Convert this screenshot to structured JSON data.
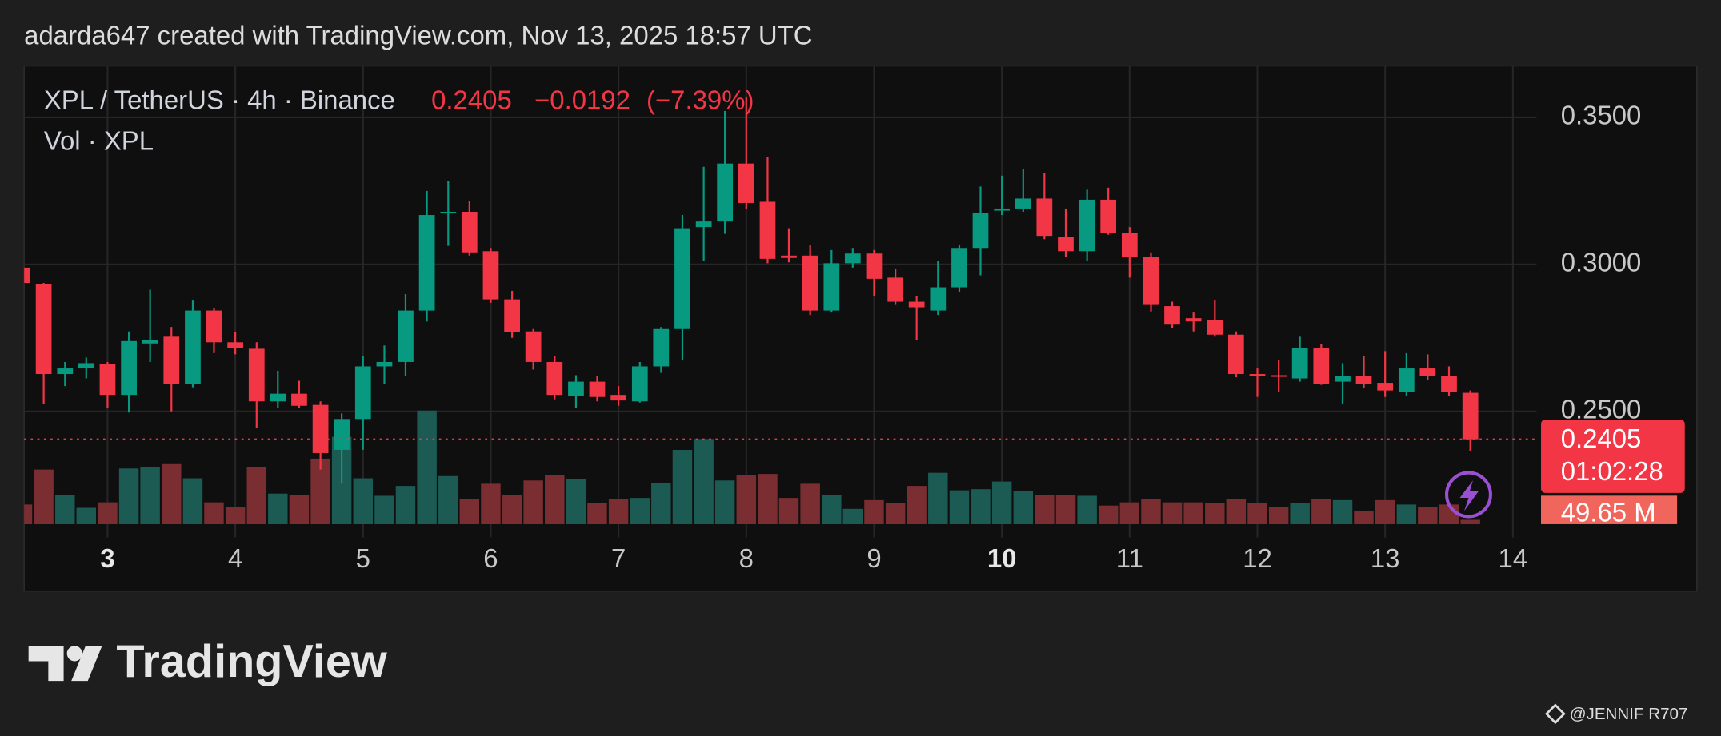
{
  "header": {
    "attribution": "adarda647 created with TradingView.com, Nov 13, 2025 18:57 UTC"
  },
  "chart_data": {
    "type": "candlestick",
    "symbol": "XPL / TetherUS · 4h · Binance",
    "last_price": 0.2405,
    "change": {
      "value": -0.0192,
      "label": "−0.0192"
    },
    "change_pct": {
      "value": -7.39,
      "label": "(−7.39%)"
    },
    "countdown": "01:02:28",
    "up_color": "#089981",
    "down_color": "#f23645",
    "volume_up_color": "#1b5b54",
    "volume_down_color": "#7b2e31",
    "grid": true,
    "xlim": [
      2.347,
      14.186
    ],
    "xticks": [
      3,
      4,
      5,
      6,
      7,
      8,
      9,
      10,
      11,
      12,
      13,
      14
    ],
    "bold_xticks": [
      3,
      10
    ],
    "ylim": [
      0.2116,
      0.3675
    ],
    "yticks": [
      {
        "value": 0.25,
        "label": "0.2500"
      },
      {
        "value": 0.3,
        "label": "0.3000"
      },
      {
        "value": 0.35,
        "label": "0.3500"
      }
    ],
    "x": [
      2.333,
      2.5,
      2.667,
      2.833,
      3.0,
      3.167,
      3.333,
      3.5,
      3.667,
      3.833,
      4.0,
      4.167,
      4.333,
      4.5,
      4.667,
      4.833,
      5.0,
      5.167,
      5.333,
      5.5,
      5.667,
      5.833,
      6.0,
      6.167,
      6.333,
      6.5,
      6.667,
      6.833,
      7.0,
      7.167,
      7.333,
      7.5,
      7.667,
      7.833,
      8.0,
      8.167,
      8.333,
      8.5,
      8.667,
      8.833,
      9.0,
      9.167,
      9.333,
      9.5,
      9.667,
      9.833,
      10.0,
      10.167,
      10.333,
      10.5,
      10.667,
      10.833,
      11.0,
      11.167,
      11.333,
      11.5,
      11.667,
      11.833,
      12.0,
      12.167,
      12.333,
      12.5,
      12.667,
      12.833,
      13.0,
      13.167,
      13.333,
      13.5,
      13.667
    ],
    "open": [
      0.2989,
      0.2933,
      0.2627,
      0.2646,
      0.266,
      0.2556,
      0.2731,
      0.2754,
      0.2593,
      0.2843,
      0.2735,
      0.2713,
      0.2534,
      0.256,
      0.2522,
      0.2369,
      0.2474,
      0.2653,
      0.2668,
      0.2843,
      0.3175,
      0.3179,
      0.3045,
      0.2881,
      0.2772,
      0.2668,
      0.2552,
      0.2601,
      0.2556,
      0.2534,
      0.2653,
      0.278,
      0.3127,
      0.3146,
      0.3343,
      0.3213,
      0.303,
      0.303,
      0.2843,
      0.3004,
      0.3037,
      0.2955,
      0.2873,
      0.2843,
      0.2922,
      0.3056,
      0.3183,
      0.319,
      0.3224,
      0.3093,
      0.3045,
      0.322,
      0.3108,
      0.3026,
      0.2858,
      0.2817,
      0.281,
      0.2761,
      0.2627,
      0.2623,
      0.2612,
      0.2716,
      0.2601,
      0.2619,
      0.2597,
      0.2567,
      0.2646,
      0.2619,
      0.2563
    ],
    "high": [
      0.2996,
      0.2937,
      0.2668,
      0.2683,
      0.2668,
      0.2772,
      0.2914,
      0.2787,
      0.2877,
      0.2851,
      0.2769,
      0.2735,
      0.2638,
      0.2604,
      0.2534,
      0.2493,
      0.2687,
      0.2724,
      0.2899,
      0.325,
      0.3284,
      0.3216,
      0.3056,
      0.291,
      0.278,
      0.2687,
      0.2623,
      0.2619,
      0.2586,
      0.2668,
      0.2787,
      0.3168,
      0.3332,
      0.3522,
      0.3571,
      0.3366,
      0.3123,
      0.3067,
      0.3049,
      0.3056,
      0.3049,
      0.2985,
      0.2892,
      0.3011,
      0.3067,
      0.3265,
      0.3302,
      0.3325,
      0.331,
      0.319,
      0.3254,
      0.3261,
      0.3127,
      0.3041,
      0.2873,
      0.2836,
      0.2877,
      0.2772,
      0.2646,
      0.2675,
      0.2754,
      0.2728,
      0.2664,
      0.2687,
      0.2705,
      0.2698,
      0.2694,
      0.2653,
      0.2571
    ],
    "low": [
      0.2843,
      0.2526,
      0.2586,
      0.2612,
      0.2511,
      0.2496,
      0.2668,
      0.25,
      0.2582,
      0.2698,
      0.2694,
      0.2444,
      0.2511,
      0.2511,
      0.2302,
      0.2254,
      0.2369,
      0.2593,
      0.2619,
      0.2806,
      0.3063,
      0.303,
      0.2869,
      0.275,
      0.2642,
      0.2541,
      0.2511,
      0.2534,
      0.2519,
      0.253,
      0.2631,
      0.2675,
      0.3011,
      0.3104,
      0.319,
      0.3004,
      0.3007,
      0.2828,
      0.2836,
      0.2989,
      0.2892,
      0.2862,
      0.2743,
      0.2828,
      0.2907,
      0.2963,
      0.3168,
      0.3179,
      0.3086,
      0.3026,
      0.3011,
      0.3101,
      0.2955,
      0.284,
      0.2784,
      0.2772,
      0.2754,
      0.2616,
      0.2549,
      0.2567,
      0.2601,
      0.259,
      0.2526,
      0.2578,
      0.2549,
      0.2552,
      0.2608,
      0.2552,
      0.2366
    ],
    "close": [
      0.2937,
      0.2627,
      0.2646,
      0.2664,
      0.2556,
      0.2739,
      0.2743,
      0.2593,
      0.2843,
      0.2735,
      0.2716,
      0.2534,
      0.256,
      0.2519,
      0.2358,
      0.2474,
      0.2653,
      0.2668,
      0.2843,
      0.3168,
      0.3179,
      0.3041,
      0.2881,
      0.2769,
      0.2668,
      0.2556,
      0.2601,
      0.2549,
      0.2537,
      0.2653,
      0.278,
      0.3123,
      0.3146,
      0.3343,
      0.3209,
      0.3019,
      0.3022,
      0.2843,
      0.3004,
      0.3037,
      0.2951,
      0.2873,
      0.2854,
      0.2922,
      0.3056,
      0.3175,
      0.319,
      0.3224,
      0.3097,
      0.3045,
      0.322,
      0.3108,
      0.3026,
      0.2862,
      0.2795,
      0.2806,
      0.2761,
      0.2627,
      0.2623,
      0.2619,
      0.2716,
      0.2593,
      0.2619,
      0.2593,
      0.2571,
      0.2646,
      0.2619,
      0.2567,
      0.2405
    ],
    "volume": {
      "name": "Vol · XPL",
      "ylim": [
        0,
        5200
      ],
      "values": [
        223,
        620,
        335,
        186,
        248,
        632,
        645,
        682,
        521,
        248,
        198,
        645,
        347,
        335,
        744,
        992,
        521,
        322,
        434,
        1290,
        546,
        285,
        459,
        335,
        496,
        558,
        508,
        236,
        285,
        298,
        471,
        843,
        967,
        496,
        558,
        570,
        298,
        459,
        335,
        174,
        273,
        236,
        434,
        583,
        384,
        397,
        484,
        372,
        335,
        335,
        322,
        211,
        248,
        285,
        248,
        248,
        236,
        285,
        236,
        198,
        236,
        285,
        273,
        149,
        273,
        223,
        198,
        223,
        49.65
      ],
      "last_value_label": "49.65 M"
    }
  },
  "footer": {
    "logo": "TradingView",
    "watermark": "@JENNIF  R707"
  }
}
